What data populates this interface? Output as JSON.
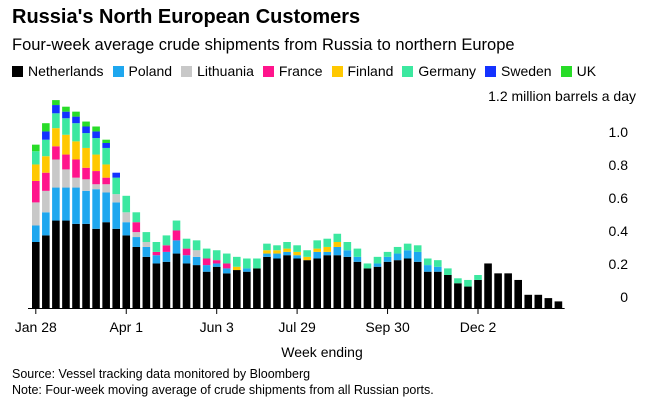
{
  "title": "Russia's North European Customers",
  "subtitle": "Four-week average crude shipments from Russia to northern Europe",
  "source": "Source: Vessel tracking data monitored by Bloomberg",
  "note": "Note: Four-week moving average of crude shipments from all Russian ports.",
  "chart_data": {
    "type": "bar",
    "stacked": true,
    "unit_label": "1.2 million barrels a day",
    "xlabel": "Week ending",
    "x_tick_labels": [
      "Jan 28",
      "Apr 1",
      "Jun 3",
      "Jul 29",
      "Sep 30",
      "Dec 2"
    ],
    "x_tick_index": [
      0,
      9,
      18,
      26,
      35,
      44
    ],
    "y_tick_labels": [
      "1.0",
      "0.8",
      "0.6",
      "0.4",
      "0.2",
      "0"
    ],
    "y_tick_values": [
      1.0,
      0.8,
      0.6,
      0.4,
      0.2,
      0
    ],
    "ylim": [
      0,
      1.2
    ],
    "legend_position": "top",
    "grid": false,
    "series": [
      {
        "name": "Netherlands",
        "color": "#000000",
        "values": [
          0.4,
          0.44,
          0.53,
          0.53,
          0.51,
          0.51,
          0.48,
          0.52,
          0.48,
          0.44,
          0.37,
          0.31,
          0.27,
          0.28,
          0.33,
          0.27,
          0.26,
          0.22,
          0.25,
          0.21,
          0.23,
          0.22,
          0.24,
          0.31,
          0.3,
          0.32,
          0.3,
          0.29,
          0.3,
          0.32,
          0.32,
          0.31,
          0.28,
          0.24,
          0.25,
          0.28,
          0.29,
          0.3,
          0.28,
          0.22,
          0.22,
          0.2,
          0.15,
          0.13,
          0.17,
          0.27,
          0.21,
          0.21,
          0.17,
          0.08,
          0.08,
          0.06,
          0.04
        ]
      },
      {
        "name": "Poland",
        "color": "#1ea7ef",
        "values": [
          0.1,
          0.14,
          0.2,
          0.2,
          0.22,
          0.2,
          0.24,
          0.18,
          0.16,
          0.08,
          0.06,
          0.06,
          0.05,
          0.06,
          0.08,
          0.05,
          0.05,
          0.04,
          0.02,
          0.03,
          0.0,
          0.02,
          0.0,
          0.02,
          0.03,
          0.02,
          0.02,
          0.0,
          0.04,
          0.02,
          0.05,
          0.04,
          0.03,
          0.0,
          0.02,
          0.03,
          0.04,
          0.05,
          0.06,
          0.04,
          0.03,
          0.0,
          0.0,
          0.0,
          0.0,
          0.0,
          0.0,
          0.0,
          0.0,
          0.0,
          0.0,
          0.0,
          0.0
        ]
      },
      {
        "name": "Lithuania",
        "color": "#c8c8c8",
        "values": [
          0.14,
          0.13,
          0.17,
          0.11,
          0.06,
          0.07,
          0.03,
          0.05,
          0.05,
          0.06,
          0.03,
          0.03,
          0.0,
          0.0,
          0.0,
          0.0,
          0.04,
          0.0,
          0.0,
          0.0,
          0.0,
          0.0,
          0.0,
          0.0,
          0.0,
          0.0,
          0.0,
          0.0,
          0.0,
          0.0,
          0.0,
          0.0,
          0.0,
          0.0,
          0.0,
          0.0,
          0.0,
          0.0,
          0.0,
          0.0,
          0.0,
          0.0,
          0.0,
          0.0,
          0.0,
          0.0,
          0.0,
          0.0,
          0.0,
          0.0,
          0.0,
          0.0,
          0.0
        ]
      },
      {
        "name": "France",
        "color": "#ff148c",
        "values": [
          0.13,
          0.11,
          0.08,
          0.09,
          0.11,
          0.07,
          0.08,
          0.04,
          0.0,
          0.0,
          0.06,
          0.0,
          0.02,
          0.04,
          0.06,
          0.04,
          0.0,
          0.04,
          0.02,
          0.03,
          0.0,
          0.0,
          0.0,
          0.0,
          0.0,
          0.0,
          0.0,
          0.0,
          0.0,
          0.0,
          0.0,
          0.0,
          0.0,
          0.0,
          0.0,
          0.0,
          0.0,
          0.0,
          0.0,
          0.0,
          0.0,
          0.0,
          0.0,
          0.0,
          0.0,
          0.0,
          0.0,
          0.0,
          0.0,
          0.0,
          0.0,
          0.0,
          0.0
        ]
      },
      {
        "name": "Finland",
        "color": "#ffc800",
        "values": [
          0.1,
          0.1,
          0.11,
          0.12,
          0.11,
          0.12,
          0.1,
          0.08,
          0.0,
          0.0,
          0.0,
          0.0,
          0.0,
          0.0,
          0.0,
          0.0,
          0.0,
          0.0,
          0.0,
          0.0,
          0.02,
          0.0,
          0.0,
          0.02,
          0.02,
          0.02,
          0.02,
          0.02,
          0.02,
          0.03,
          0.03,
          0.0,
          0.0,
          0.0,
          0.0,
          0.0,
          0.0,
          0.0,
          0.0,
          0.0,
          0.0,
          0.0,
          0.0,
          0.0,
          0.0,
          0.0,
          0.0,
          0.0,
          0.0,
          0.0,
          0.0,
          0.0,
          0.0
        ]
      },
      {
        "name": "Germany",
        "color": "#3ce8a0",
        "values": [
          0.08,
          0.1,
          0.09,
          0.1,
          0.11,
          0.09,
          0.1,
          0.1,
          0.1,
          0.1,
          0.06,
          0.06,
          0.06,
          0.06,
          0.06,
          0.06,
          0.06,
          0.06,
          0.06,
          0.06,
          0.06,
          0.06,
          0.06,
          0.04,
          0.03,
          0.04,
          0.04,
          0.04,
          0.05,
          0.05,
          0.05,
          0.05,
          0.05,
          0.03,
          0.04,
          0.03,
          0.04,
          0.04,
          0.04,
          0.04,
          0.04,
          0.04,
          0.03,
          0.04,
          0.03,
          0.0,
          0.0,
          0.0,
          0.0,
          0.0,
          0.0,
          0.0,
          0.0
        ]
      },
      {
        "name": "Sweden",
        "color": "#1432ff",
        "values": [
          0.0,
          0.05,
          0.05,
          0.04,
          0.04,
          0.04,
          0.04,
          0.03,
          0.03,
          0.0,
          0.0,
          0.0,
          0.0,
          0.0,
          0.0,
          0.0,
          0.0,
          0.0,
          0.0,
          0.0,
          0.0,
          0.0,
          0.0,
          0.0,
          0.0,
          0.0,
          0.0,
          0.0,
          0.0,
          0.0,
          0.0,
          0.0,
          0.0,
          0.0,
          0.0,
          0.0,
          0.0,
          0.0,
          0.0,
          0.0,
          0.0,
          0.0,
          0.0,
          0.0,
          0.0,
          0.0,
          0.0,
          0.0,
          0.0,
          0.0,
          0.0,
          0.0,
          0.0
        ]
      },
      {
        "name": "UK",
        "color": "#28dc28",
        "values": [
          0.04,
          0.05,
          0.03,
          0.03,
          0.03,
          0.03,
          0.03,
          0.02,
          0.0,
          0.0,
          0.0,
          0.0,
          0.0,
          0.0,
          0.0,
          0.0,
          0.0,
          0.0,
          0.0,
          0.0,
          0.0,
          0.0,
          0.0,
          0.0,
          0.0,
          0.0,
          0.0,
          0.0,
          0.0,
          0.0,
          0.0,
          0.0,
          0.0,
          0.0,
          0.0,
          0.0,
          0.0,
          0.0,
          0.0,
          0.0,
          0.0,
          0.0,
          0.0,
          0.0,
          0.0,
          0.0,
          0.0,
          0.0,
          0.0,
          0.0,
          0.0,
          0.0,
          0.0
        ]
      }
    ]
  }
}
